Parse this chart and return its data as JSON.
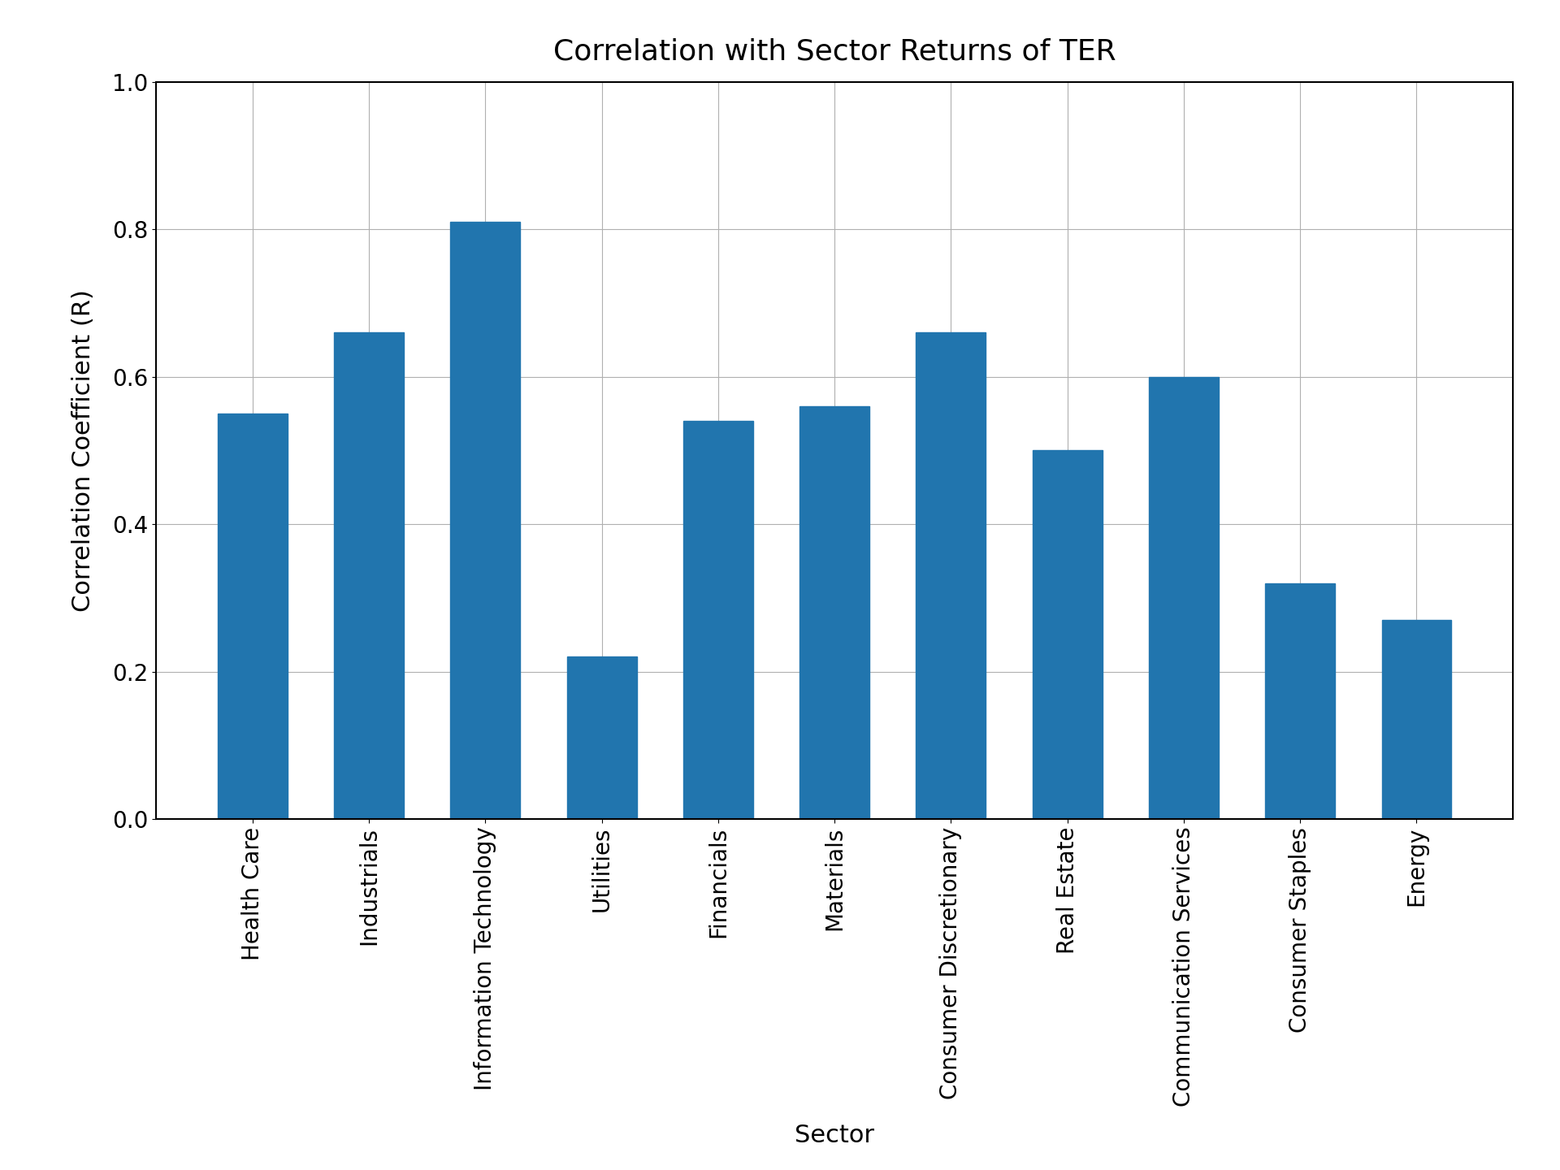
{
  "title": "Correlation with Sector Returns of TER",
  "xlabel": "Sector",
  "ylabel": "Correlation Coefficient (R)",
  "categories": [
    "Health Care",
    "Industrials",
    "Information Technology",
    "Utilities",
    "Financials",
    "Materials",
    "Consumer Discretionary",
    "Real Estate",
    "Communication Services",
    "Consumer Staples",
    "Energy"
  ],
  "values": [
    0.55,
    0.66,
    0.81,
    0.22,
    0.54,
    0.56,
    0.66,
    0.5,
    0.6,
    0.32,
    0.27
  ],
  "bar_color": "#2175ae",
  "ylim": [
    0.0,
    1.0
  ],
  "yticks": [
    0.0,
    0.2,
    0.4,
    0.6,
    0.8,
    1.0
  ],
  "title_fontsize": 26,
  "label_fontsize": 22,
  "tick_fontsize": 20,
  "background_color": "#ffffff",
  "grid_color": "#b0b0b0"
}
